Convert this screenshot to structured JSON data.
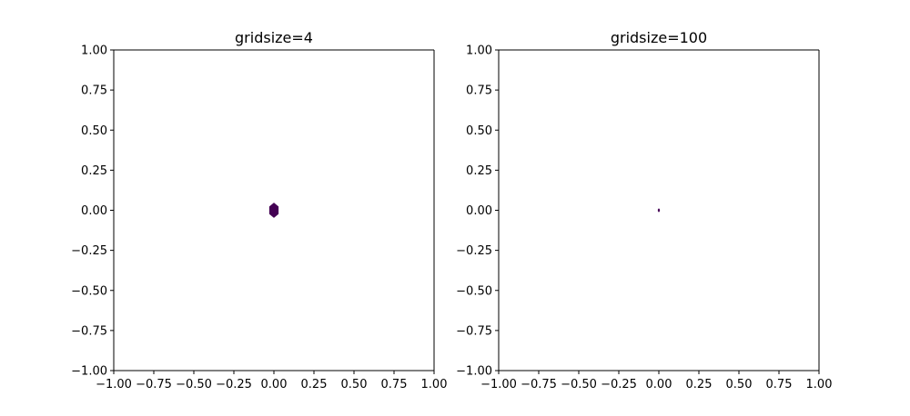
{
  "chart_data": [
    {
      "type": "hexbin",
      "title": "gridsize=4",
      "xlabel": "",
      "ylabel": "",
      "xlim": [
        -1.0,
        1.0
      ],
      "ylim": [
        -1.0,
        1.0
      ],
      "x_ticks": [
        "−1.00",
        "−0.75",
        "−0.50",
        "−0.25",
        "0.00",
        "0.25",
        "0.50",
        "0.75",
        "1.00"
      ],
      "y_ticks": [
        "1.00",
        "0.75",
        "0.50",
        "0.25",
        "0.00",
        "−0.25",
        "−0.50",
        "−0.75",
        "−1.00"
      ],
      "x_tick_values": [
        -1.0,
        -0.75,
        -0.5,
        -0.25,
        0.0,
        0.25,
        0.5,
        0.75,
        1.0
      ],
      "y_tick_values": [
        1.0,
        0.75,
        0.5,
        0.25,
        0.0,
        -0.25,
        -0.5,
        -0.75,
        -1.0
      ],
      "gridsize": 4,
      "hexbins": [
        {
          "x": 0.0,
          "y": 0.0,
          "count": 1,
          "color": "#440154"
        }
      ],
      "grid": false,
      "legend": "none"
    },
    {
      "type": "hexbin",
      "title": "gridsize=100",
      "xlabel": "",
      "ylabel": "",
      "xlim": [
        -1.0,
        1.0
      ],
      "ylim": [
        -1.0,
        1.0
      ],
      "x_ticks": [
        "−1.00",
        "−0.75",
        "−0.50",
        "−0.25",
        "0.00",
        "0.25",
        "0.50",
        "0.75",
        "1.00"
      ],
      "y_ticks": [
        "1.00",
        "0.75",
        "0.50",
        "0.25",
        "0.00",
        "−0.25",
        "−0.50",
        "−0.75",
        "−1.00"
      ],
      "x_tick_values": [
        -1.0,
        -0.75,
        -0.5,
        -0.25,
        0.0,
        0.25,
        0.5,
        0.75,
        1.0
      ],
      "y_tick_values": [
        1.0,
        0.75,
        0.5,
        0.25,
        0.0,
        -0.25,
        -0.5,
        -0.75,
        -1.0
      ],
      "gridsize": 100,
      "hexbins": [
        {
          "x": 0.0,
          "y": 0.0,
          "count": 1,
          "color": "#440154"
        }
      ],
      "grid": false,
      "legend": "none"
    }
  ]
}
